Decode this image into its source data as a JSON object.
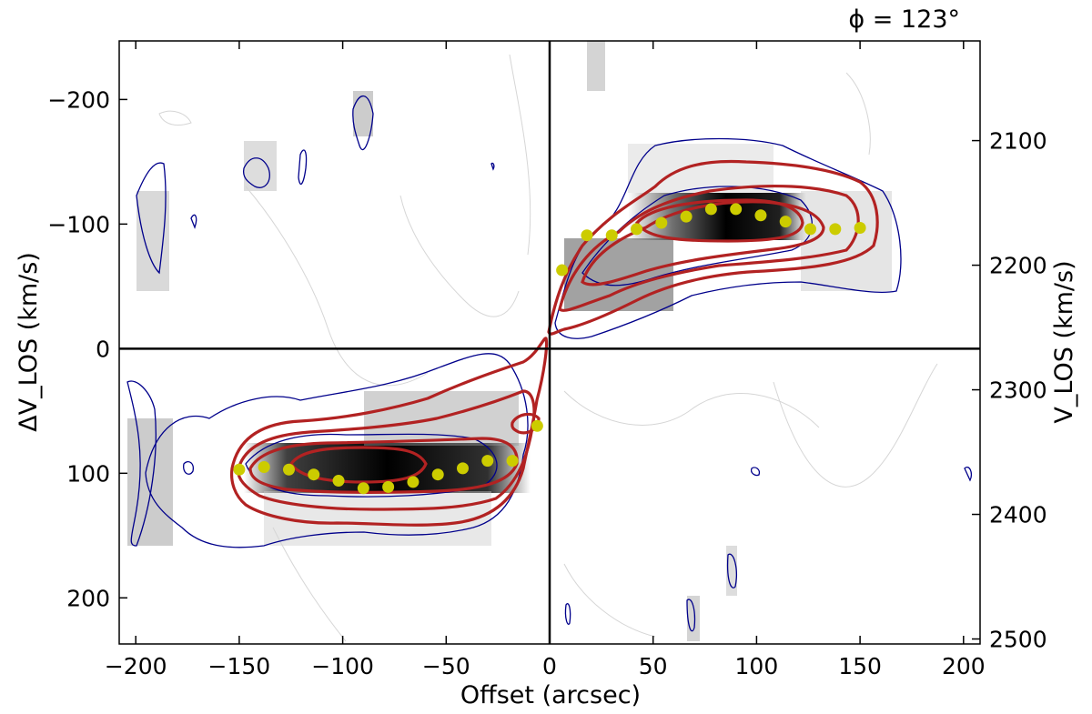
{
  "chart_data": {
    "type": "scatter",
    "title": "ϕ = 123°",
    "xlabel": "Offset (arcsec)",
    "ylabel_left": "ΔV_LOS (km/s)",
    "ylabel_right": "V_LOS (km/s)",
    "xlim": [
      -208,
      208
    ],
    "ylim_left": [
      -247,
      237
    ],
    "ylim_right": [
      2267,
      2272
    ],
    "ylim_right_range": [
      2020,
      2504
    ],
    "x_ticks": [
      -200,
      -150,
      -100,
      -50,
      0,
      50,
      100,
      150,
      200
    ],
    "x_tick_labels": [
      "−200",
      "−150",
      "−100",
      "−50",
      "0",
      "50",
      "100",
      "150",
      "200"
    ],
    "y_left_ticks": [
      -200,
      -100,
      0,
      100,
      200
    ],
    "y_left_tick_labels": [
      "−200",
      "−100",
      "0",
      "100",
      "200"
    ],
    "y_right_ticks": [
      2100,
      2200,
      2300,
      2400,
      2500
    ],
    "y_right_tick_labels": [
      "2100",
      "2200",
      "2300",
      "2400",
      "2500"
    ],
    "systemic_velocity": 2267,
    "series": [
      {
        "color": "#cccc00",
        "x": [
          6,
          18,
          30,
          42,
          54,
          66,
          78,
          90,
          102,
          114,
          126,
          138,
          150
        ],
        "y": [
          -63,
          -91,
          -91,
          -96,
          -101,
          -106,
          -112,
          -112,
          -107,
          -102,
          -96,
          -96,
          -97
        ]
      },
      {
        "color": "#cccc00",
        "x": [
          -150,
          -138,
          -126,
          -114,
          -102,
          -90,
          -78,
          -66,
          -54,
          -42,
          -30,
          -18,
          -6
        ],
        "y": [
          97,
          95,
          97,
          101,
          106,
          112,
          111,
          107,
          101,
          96,
          90,
          90,
          62
        ]
      }
    ],
    "contours": {
      "red_color": "#b22222",
      "blue_color": "#00008b",
      "gray_color": "#cccccc"
    },
    "grid": false
  }
}
